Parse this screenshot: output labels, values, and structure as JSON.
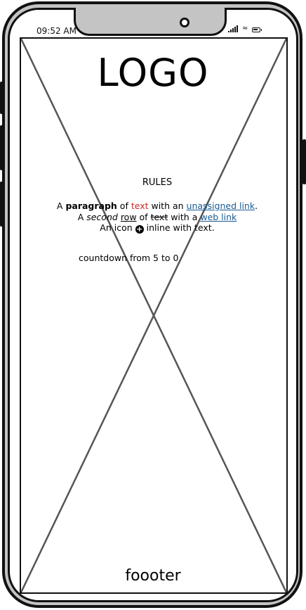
{
  "status_bar": {
    "time": "09:52 AM"
  },
  "header": {
    "logo": "LOGO"
  },
  "content": {
    "rules_title": "RULES",
    "line1": {
      "a": "A ",
      "bold": "paragraph",
      "of": " of ",
      "red": "text",
      "with_an": " with an ",
      "link": "unassigned link",
      "end": "."
    },
    "line2": {
      "a": "A ",
      "italic": "second",
      "sp1": " ",
      "underlined": "row",
      "of": " of ",
      "strike": "text",
      "with_a": " with a ",
      "link": "web link"
    },
    "line3": {
      "before": "An icon ",
      "icon": "plus-circle-icon",
      "after": " inline with text."
    },
    "countdown": "countdown from 5 to 0"
  },
  "footer": {
    "text": "foooter"
  },
  "colors": {
    "red_text": "#cc2a2a",
    "link": "#1a5b93",
    "phone_body": "#c4c4c4"
  }
}
